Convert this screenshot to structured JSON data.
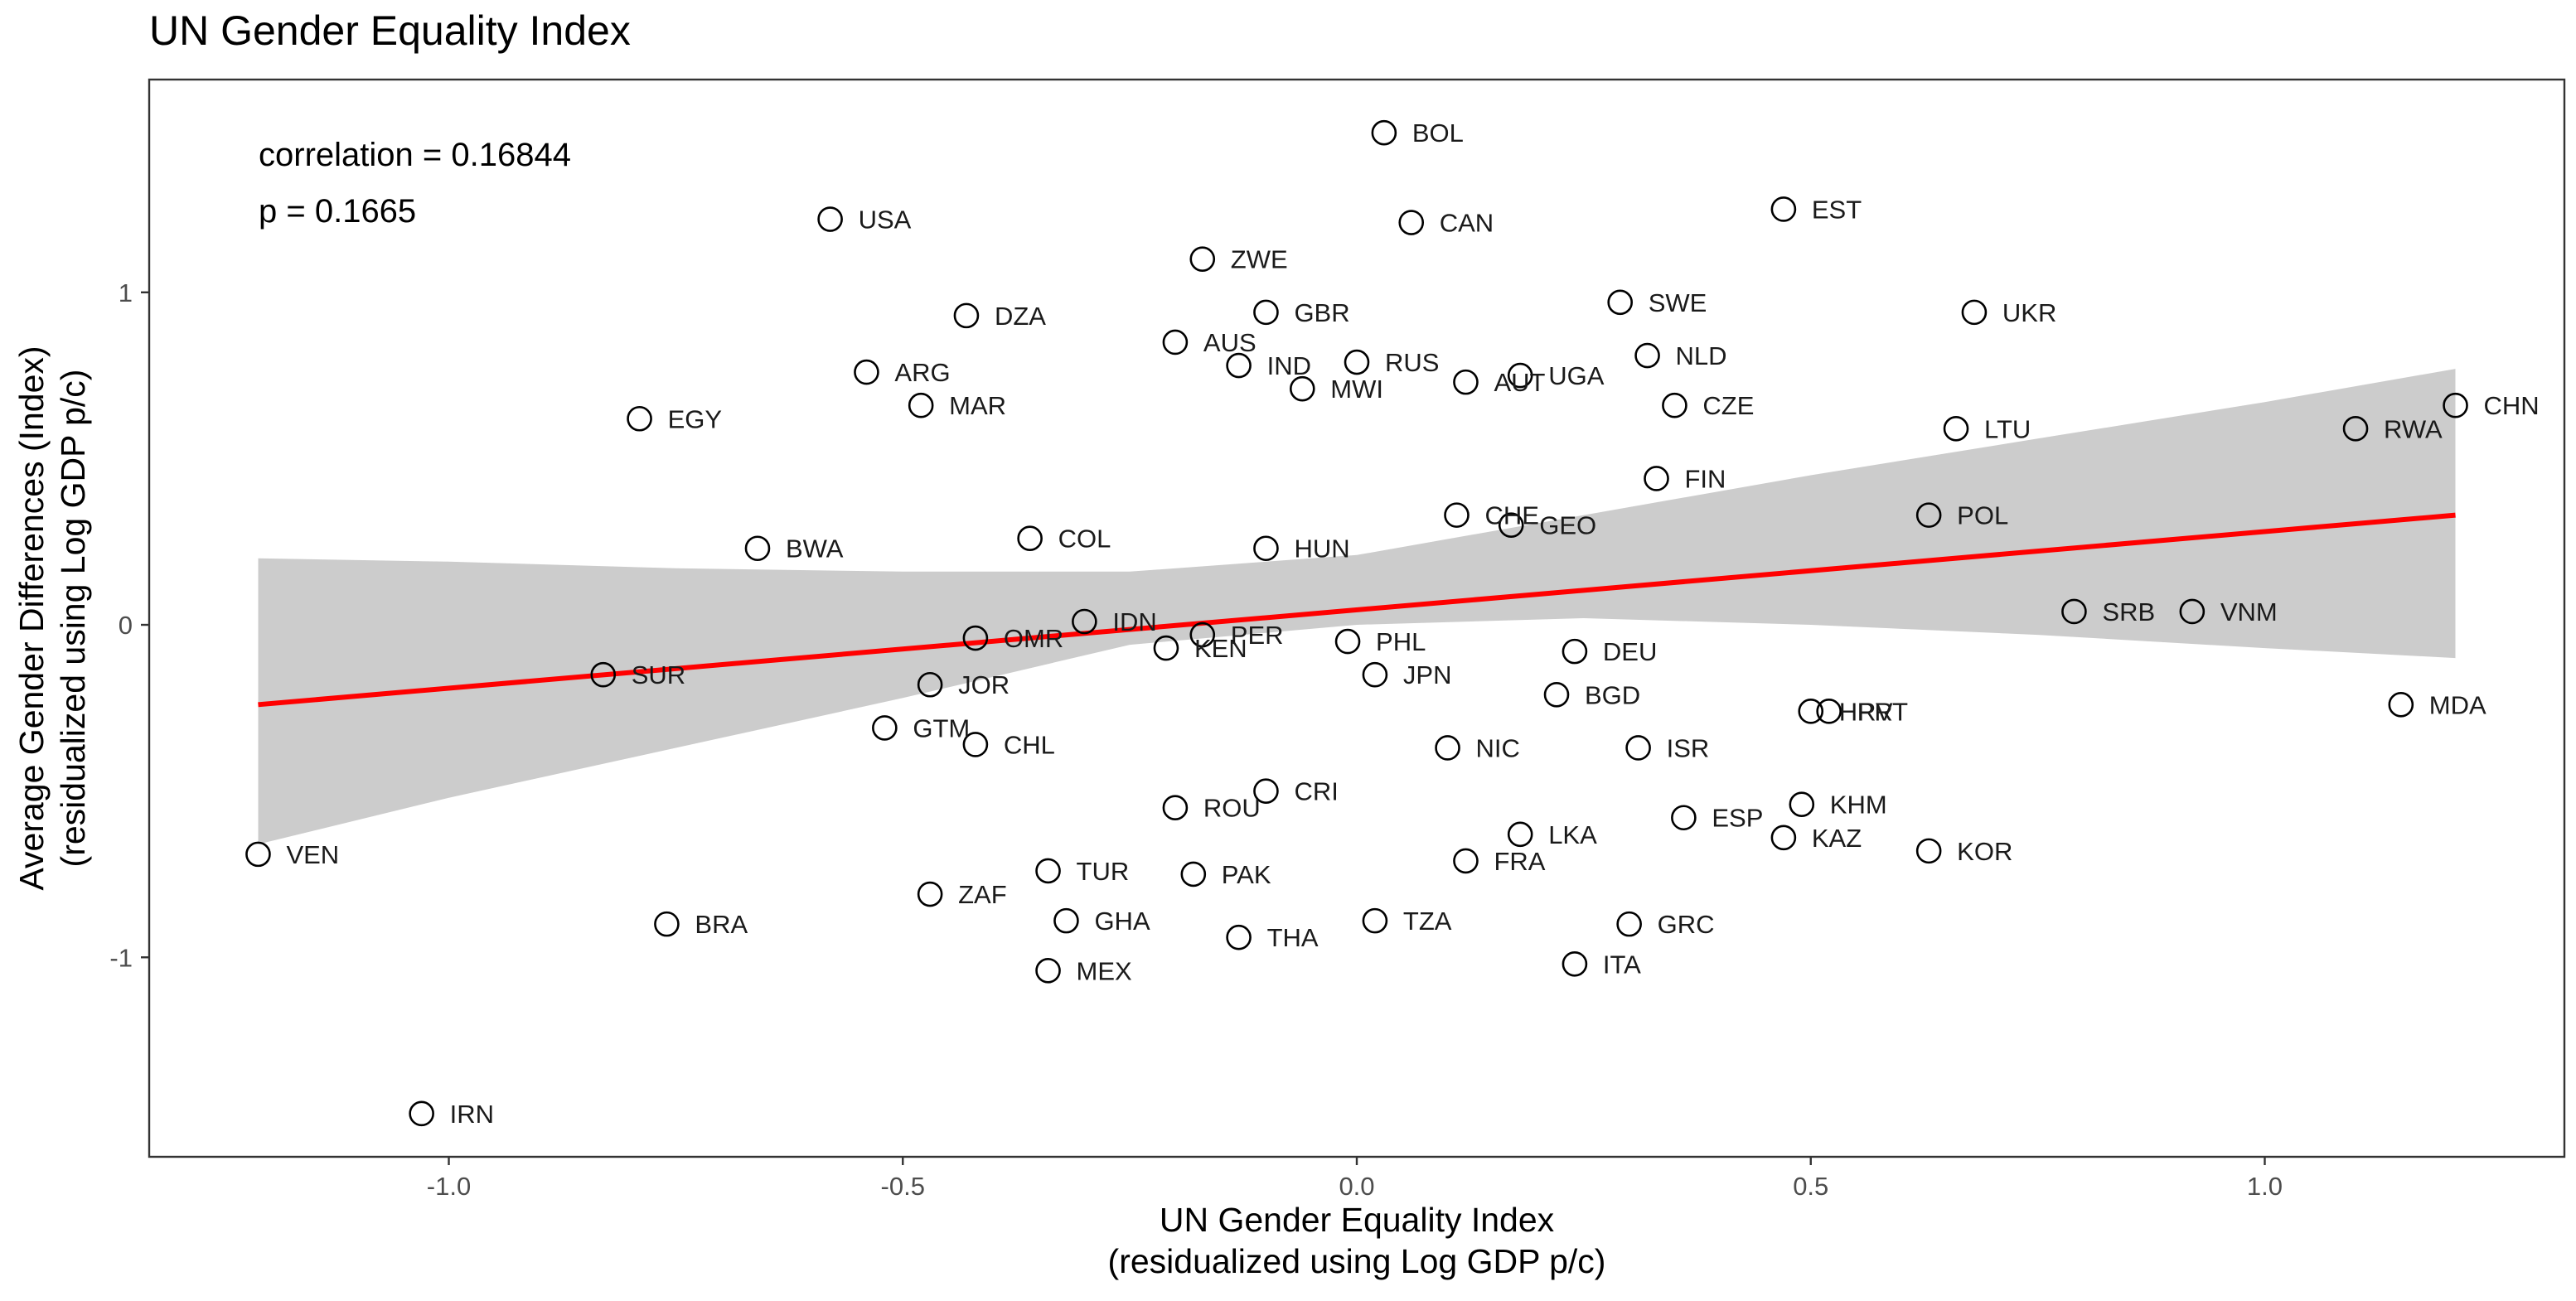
{
  "chart_data": {
    "type": "scatter",
    "title": "UN Gender Equality Index",
    "xlabel": [
      "UN Gender Equality Index",
      "(residualized using Log GDP p/c)"
    ],
    "ylabel": [
      "Average Gender Differences (Index)",
      "(residualized using Log GDP p/c)"
    ],
    "xlim": [
      -1.33,
      1.33
    ],
    "ylim": [
      -1.6,
      1.64
    ],
    "xticks": [
      -1.0,
      -0.5,
      0.0,
      0.5,
      1.0
    ],
    "xtick_labels": [
      "-1.0",
      "-0.5",
      "0.0",
      "0.5",
      "1.0"
    ],
    "yticks": [
      -1,
      0,
      1
    ],
    "ytick_labels": [
      "-1",
      "0",
      "1"
    ],
    "grid": false,
    "annotations": [
      "correlation = 0.16844",
      "p = 0.1665"
    ],
    "fit_line": {
      "color": "#ff0000",
      "x": [
        -1.21,
        1.21
      ],
      "y": [
        -0.24,
        0.33
      ]
    },
    "confidence_band": {
      "color": "#cccccc",
      "x": [
        -1.21,
        -1.0,
        -0.75,
        -0.5,
        -0.25,
        0.0,
        0.25,
        0.5,
        0.75,
        1.0,
        1.21
      ],
      "upper": [
        0.2,
        0.19,
        0.17,
        0.16,
        0.16,
        0.21,
        0.33,
        0.45,
        0.56,
        0.67,
        0.77
      ],
      "lower": [
        -0.66,
        -0.52,
        -0.37,
        -0.22,
        -0.06,
        0.0,
        0.02,
        0.0,
        -0.03,
        -0.07,
        -0.1
      ]
    },
    "points": [
      {
        "label": "BOL",
        "x": 0.03,
        "y": 1.48
      },
      {
        "label": "USA",
        "x": -0.58,
        "y": 1.22
      },
      {
        "label": "CAN",
        "x": 0.06,
        "y": 1.21
      },
      {
        "label": "EST",
        "x": 0.47,
        "y": 1.25
      },
      {
        "label": "ZWE",
        "x": -0.17,
        "y": 1.1
      },
      {
        "label": "SWE",
        "x": 0.29,
        "y": 0.97
      },
      {
        "label": "UKR",
        "x": 0.68,
        "y": 0.94
      },
      {
        "label": "DZA",
        "x": -0.43,
        "y": 0.93
      },
      {
        "label": "GBR",
        "x": -0.1,
        "y": 0.94
      },
      {
        "label": "AUS",
        "x": -0.2,
        "y": 0.85
      },
      {
        "label": "NLD",
        "x": 0.32,
        "y": 0.81
      },
      {
        "label": "IND",
        "x": -0.13,
        "y": 0.78
      },
      {
        "label": "RUS",
        "x": 0.0,
        "y": 0.79
      },
      {
        "label": "ARG",
        "x": -0.54,
        "y": 0.76
      },
      {
        "label": "AUT",
        "x": 0.12,
        "y": 0.73
      },
      {
        "label": "UGA",
        "x": 0.18,
        "y": 0.75
      },
      {
        "label": "MWI",
        "x": -0.06,
        "y": 0.71
      },
      {
        "label": "MAR",
        "x": -0.48,
        "y": 0.66
      },
      {
        "label": "CZE",
        "x": 0.35,
        "y": 0.66
      },
      {
        "label": "CHN",
        "x": 1.21,
        "y": 0.66
      },
      {
        "label": "EGY",
        "x": -0.79,
        "y": 0.62
      },
      {
        "label": "LTU",
        "x": 0.66,
        "y": 0.59
      },
      {
        "label": "RWA",
        "x": 1.1,
        "y": 0.59
      },
      {
        "label": "FIN",
        "x": 0.33,
        "y": 0.44
      },
      {
        "label": "POL",
        "x": 0.63,
        "y": 0.33
      },
      {
        "label": "CHE",
        "x": 0.11,
        "y": 0.33
      },
      {
        "label": "GEO",
        "x": 0.17,
        "y": 0.3
      },
      {
        "label": "COL",
        "x": -0.36,
        "y": 0.26
      },
      {
        "label": "BWA",
        "x": -0.66,
        "y": 0.23
      },
      {
        "label": "HUN",
        "x": -0.1,
        "y": 0.23
      },
      {
        "label": "SRB",
        "x": 0.79,
        "y": 0.04
      },
      {
        "label": "VNM",
        "x": 0.92,
        "y": 0.04
      },
      {
        "label": "IDN",
        "x": -0.3,
        "y": 0.01
      },
      {
        "label": "OMR",
        "x": -0.42,
        "y": -0.04
      },
      {
        "label": "PER",
        "x": -0.17,
        "y": -0.03
      },
      {
        "label": "PHL",
        "x": -0.01,
        "y": -0.05
      },
      {
        "label": "KEN",
        "x": -0.21,
        "y": -0.07
      },
      {
        "label": "DEU",
        "x": 0.24,
        "y": -0.08
      },
      {
        "label": "SUR",
        "x": -0.83,
        "y": -0.15
      },
      {
        "label": "JPN",
        "x": 0.02,
        "y": -0.15
      },
      {
        "label": "JOR",
        "x": -0.47,
        "y": -0.18
      },
      {
        "label": "BGD",
        "x": 0.22,
        "y": -0.21
      },
      {
        "label": "MDA",
        "x": 1.15,
        "y": -0.24
      },
      {
        "label": "HRV",
        "x": 0.5,
        "y": -0.26
      },
      {
        "label": "PRT",
        "x": 0.52,
        "y": -0.26
      },
      {
        "label": "GTM",
        "x": -0.52,
        "y": -0.31
      },
      {
        "label": "CHL",
        "x": -0.42,
        "y": -0.36
      },
      {
        "label": "NIC",
        "x": 0.1,
        "y": -0.37
      },
      {
        "label": "ISR",
        "x": 0.31,
        "y": -0.37
      },
      {
        "label": "CRI",
        "x": -0.1,
        "y": -0.5
      },
      {
        "label": "KHM",
        "x": 0.49,
        "y": -0.54
      },
      {
        "label": "ROU",
        "x": -0.2,
        "y": -0.55
      },
      {
        "label": "ESP",
        "x": 0.36,
        "y": -0.58
      },
      {
        "label": "LKA",
        "x": 0.18,
        "y": -0.63
      },
      {
        "label": "KAZ",
        "x": 0.47,
        "y": -0.64
      },
      {
        "label": "VEN",
        "x": -1.21,
        "y": -0.69
      },
      {
        "label": "KOR",
        "x": 0.63,
        "y": -0.68
      },
      {
        "label": "FRA",
        "x": 0.12,
        "y": -0.71
      },
      {
        "label": "TUR",
        "x": -0.34,
        "y": -0.74
      },
      {
        "label": "PAK",
        "x": -0.18,
        "y": -0.75
      },
      {
        "label": "ZAF",
        "x": -0.47,
        "y": -0.81
      },
      {
        "label": "GHA",
        "x": -0.32,
        "y": -0.89
      },
      {
        "label": "TZA",
        "x": 0.02,
        "y": -0.89
      },
      {
        "label": "BRA",
        "x": -0.76,
        "y": -0.9
      },
      {
        "label": "GRC",
        "x": 0.3,
        "y": -0.9
      },
      {
        "label": "THA",
        "x": -0.13,
        "y": -0.94
      },
      {
        "label": "MEX",
        "x": -0.34,
        "y": -1.04
      },
      {
        "label": "ITA",
        "x": 0.24,
        "y": -1.02
      },
      {
        "label": "IRN",
        "x": -1.03,
        "y": -1.47
      }
    ]
  }
}
